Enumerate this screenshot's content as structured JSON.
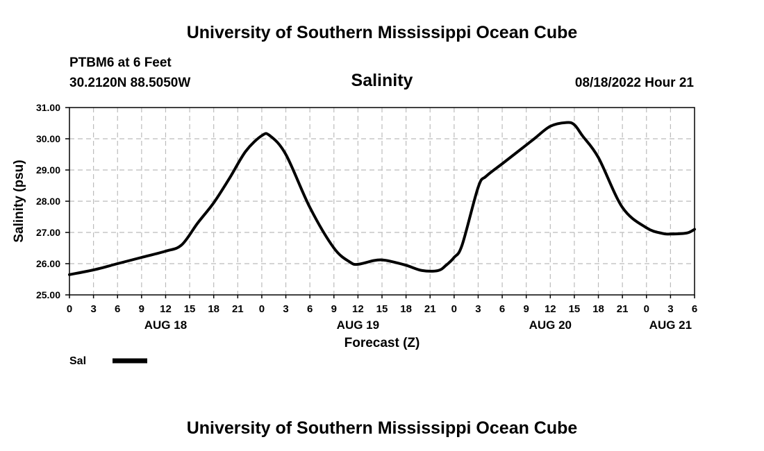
{
  "header": {
    "title": "University of Southern Mississippi Ocean Cube",
    "station": "PTBM6 at 6 Feet",
    "coords": "30.2120N  88.5050W",
    "datetime": "08/18/2022 Hour 21",
    "footer": "University of Southern Mississippi Ocean Cube"
  },
  "chart_data": {
    "type": "line",
    "title": "Salinity",
    "xlabel": "Forecast (Z)",
    "ylabel": "Salinity (psu)",
    "x_unit": "hours since AUG 18 00Z",
    "xlim": [
      0,
      78
    ],
    "ylim": [
      25.0,
      31.0
    ],
    "grid": true,
    "x_ticks": [
      0,
      3,
      6,
      9,
      12,
      15,
      18,
      21,
      24,
      27,
      30,
      33,
      36,
      39,
      42,
      45,
      48,
      51,
      54,
      57,
      60,
      63,
      66,
      69,
      72,
      75,
      78
    ],
    "x_tick_labels": [
      "0",
      "3",
      "6",
      "9",
      "12",
      "15",
      "18",
      "21",
      "0",
      "3",
      "6",
      "9",
      "12",
      "15",
      "18",
      "21",
      "0",
      "3",
      "6",
      "9",
      "12",
      "15",
      "18",
      "21",
      "0",
      "3",
      "6"
    ],
    "day_labels": [
      {
        "x": 12,
        "label": "AUG 18"
      },
      {
        "x": 36,
        "label": "AUG 19"
      },
      {
        "x": 60,
        "label": "AUG 20"
      },
      {
        "x": 75,
        "label": "AUG 21"
      }
    ],
    "y_ticks": [
      25.0,
      26.0,
      27.0,
      28.0,
      29.0,
      30.0,
      31.0
    ],
    "y_tick_labels": [
      "25.00",
      "26.00",
      "27.00",
      "28.00",
      "29.00",
      "30.00",
      "31.00"
    ],
    "legend": {
      "label": "Sal",
      "position": "bottom-left"
    },
    "series": [
      {
        "name": "Sal",
        "x": [
          0,
          3,
          6,
          9,
          12,
          14,
          16,
          18,
          20,
          22,
          24,
          25,
          27,
          30,
          33,
          35,
          36,
          38,
          39,
          40,
          42,
          44,
          46,
          47,
          48,
          49,
          51,
          52,
          54,
          56,
          58,
          60,
          62,
          63,
          64,
          66,
          69,
          72,
          74,
          75,
          77,
          78
        ],
        "values": [
          25.65,
          25.8,
          26.0,
          26.2,
          26.4,
          26.6,
          27.3,
          27.95,
          28.75,
          29.6,
          30.1,
          30.1,
          29.5,
          27.8,
          26.5,
          26.05,
          25.98,
          26.1,
          26.12,
          26.08,
          25.95,
          25.78,
          25.78,
          25.95,
          26.2,
          26.6,
          28.45,
          28.8,
          29.2,
          29.6,
          30.0,
          30.4,
          30.52,
          30.45,
          30.1,
          29.4,
          27.8,
          27.15,
          26.97,
          26.95,
          26.98,
          27.1
        ]
      }
    ]
  }
}
